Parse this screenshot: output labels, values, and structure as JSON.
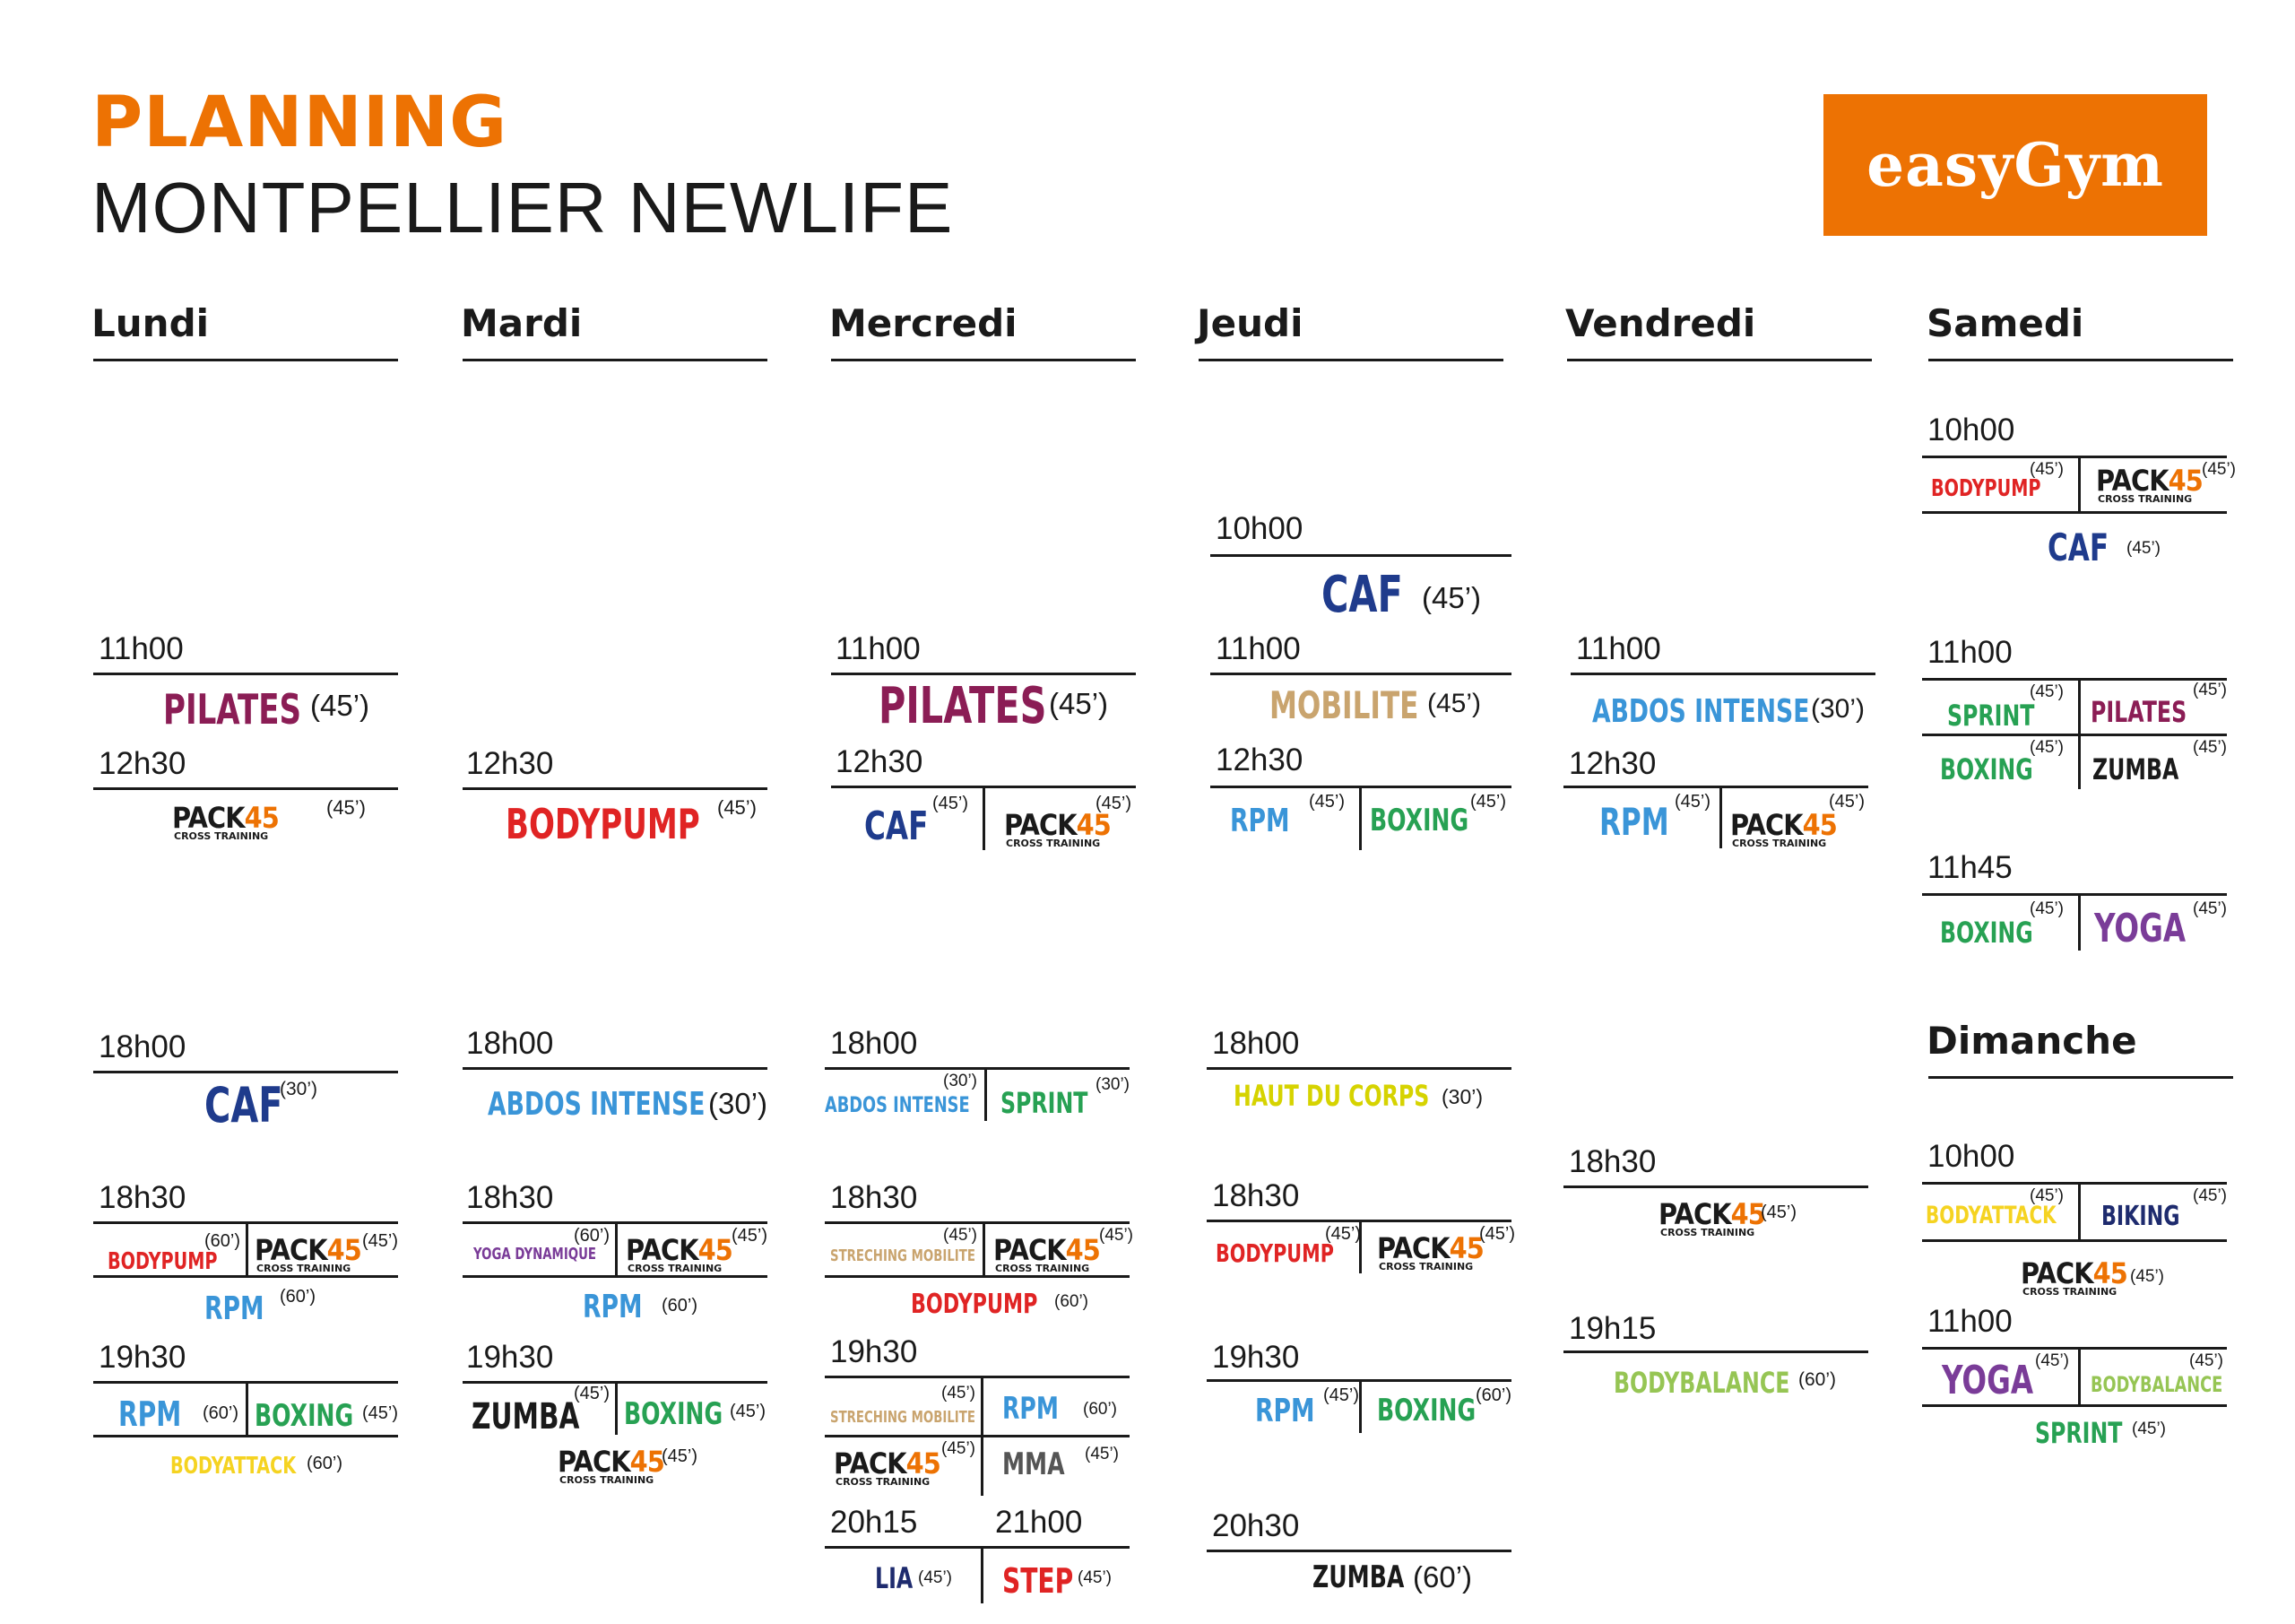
{
  "header": {
    "title": "PLANNING",
    "subtitle": "MONTPELLIER NEWLIFE",
    "logo_text": "easyGym"
  },
  "colors": {
    "brand_orange": "#ed7203",
    "pilates": "#8b1d55",
    "caf": "#1f3b8c",
    "bodypump": "#e02424",
    "rpm": "#3a95d8",
    "boxing": "#27a153",
    "zumba": "#1a1a1a",
    "yoga": "#7a3c98",
    "mobilite": "#c9a46e",
    "bodyattack": "#f5d321",
    "bodybalance": "#96c554",
    "haut_du_corps": "#d6d300",
    "mma": "#555555",
    "lia": "#1e2b6e",
    "step": "#e02424",
    "sprint": "#27a153",
    "abdos_intense": "#3a95d8"
  },
  "days": {
    "lundi": "Lundi",
    "mardi": "Mardi",
    "mercredi": "Mercredi",
    "jeudi": "Jeudi",
    "vendredi": "Vendredi",
    "samedi": "Samedi",
    "dimanche": "Dimanche"
  },
  "pack": {
    "word": "PACK",
    "num": "45",
    "sub": "CROSS TRAINING"
  },
  "lundi": {
    "t1": "11h00",
    "c1": "PILATES",
    "d1": "(45’)",
    "t2": "12h30",
    "d2": "(45’)",
    "t3": "18h00",
    "c3": "CAF",
    "d3": "(30’)",
    "t4": "18h30",
    "c4a": "BODYPUMP",
    "d4a": "(60’)",
    "d4b": "(45’)",
    "c4c": "RPM",
    "d4c": "(60’)",
    "t5": "19h30",
    "c5a": "RPM",
    "d5a": "(60’)",
    "c5b": "BOXING",
    "d5b": "(45’)",
    "c5c": "BODYATTACK",
    "d5c": "(60’)"
  },
  "mardi": {
    "t1": "12h30",
    "c1": "BODYPUMP",
    "d1": "(45’)",
    "t2": "18h00",
    "c2": "ABDOS INTENSE",
    "d2": "(30’)",
    "t3": "18h30",
    "c3a": "YOGA DYNAMIQUE",
    "d3a": "(60’)",
    "d3b": "(45’)",
    "c3c": "RPM",
    "d3c": "(60’)",
    "t4": "19h30",
    "c4a": "ZUMBA",
    "d4a": "(45’)",
    "c4b": "BOXING",
    "d4b": "(45’)",
    "d4c": "(45’)"
  },
  "mercredi": {
    "t1": "11h00",
    "c1": "PILATES",
    "d1": "(45’)",
    "t2": "12h30",
    "c2a": "CAF",
    "d2a": "(45’)",
    "d2b": "(45’)",
    "t3": "18h00",
    "c3a": "ABDOS INTENSE",
    "d3a": "(30’)",
    "c3b": "SPRINT",
    "d3b": "(30’)",
    "t4": "18h30",
    "c4a": "STRECHING MOBILITE",
    "d4a": "(45’)",
    "d4b": "(45’)",
    "c4c": "BODYPUMP",
    "d4c": "(60’)",
    "t5": "19h30",
    "c5a": "STRECHING MOBILITE",
    "d5a": "(45’)",
    "c5b": "RPM",
    "d5b": "(60’)",
    "d5c": "(45’)",
    "c5d": "MMA",
    "d5d": "(45’)",
    "t6": "20h15",
    "t7": "21h00",
    "c6a": "LIA",
    "d6a": "(45’)",
    "c6b": "STEP",
    "d6b": "(45’)"
  },
  "jeudi": {
    "t0": "10h00",
    "c0": "CAF",
    "d0": "(45’)",
    "t1": "11h00",
    "c1": "MOBILITE",
    "d1": "(45’)",
    "t2": "12h30",
    "c2a": "RPM",
    "d2a": "(45’)",
    "c2b": "BOXING",
    "d2b": "(45’)",
    "t3": "18h00",
    "c3": "HAUT DU CORPS",
    "d3": "(30’)",
    "t4": "18h30",
    "c4a": "BODYPUMP",
    "d4a": "(45’)",
    "d4b": "(45’)",
    "t5": "19h30",
    "c5a": "RPM",
    "d5a": "(45’)",
    "c5b": "BOXING",
    "d5b": "(60’)",
    "t6": "20h30",
    "c6": "ZUMBA",
    "d6": "(60’)"
  },
  "vendredi": {
    "t1": "11h00",
    "c1": "ABDOS INTENSE",
    "d1": "(30’)",
    "t2": "12h30",
    "c2a": "RPM",
    "d2a": "(45’)",
    "d2b": "(45’)",
    "t3": "18h30",
    "d3": "(45’)",
    "t4": "19h15",
    "c4": "BODYBALANCE",
    "d4": "(60’)"
  },
  "samedi": {
    "t1": "10h00",
    "c1a": "BODYPUMP",
    "d1a": "(45’)",
    "d1b": "(45’)",
    "c1c": "CAF",
    "d1c": "(45’)",
    "t2": "11h00",
    "c2a": "SPRINT",
    "d2a": "(45’)",
    "c2b": "PILATES",
    "d2b": "(45’)",
    "c2c": "BOXING",
    "d2c": "(45’)",
    "c2d": "ZUMBA",
    "d2d": "(45’)",
    "t3": "11h45",
    "c3a": "BOXING",
    "d3a": "(45’)",
    "c3b": "YOGA",
    "d3b": "(45’)"
  },
  "dimanche": {
    "t1": "10h00",
    "c1a": "BODYATTACK",
    "d1a": "(45’)",
    "c1b": "BIKING",
    "d1b": "(45’)",
    "d1c": "(45’)",
    "t2": "11h00",
    "c2a": "YOGA",
    "d2a": "(45’)",
    "c2b": "BODYBALANCE",
    "d2b": "(45’)",
    "c2c": "SPRINT",
    "d2c": "(45’)"
  }
}
